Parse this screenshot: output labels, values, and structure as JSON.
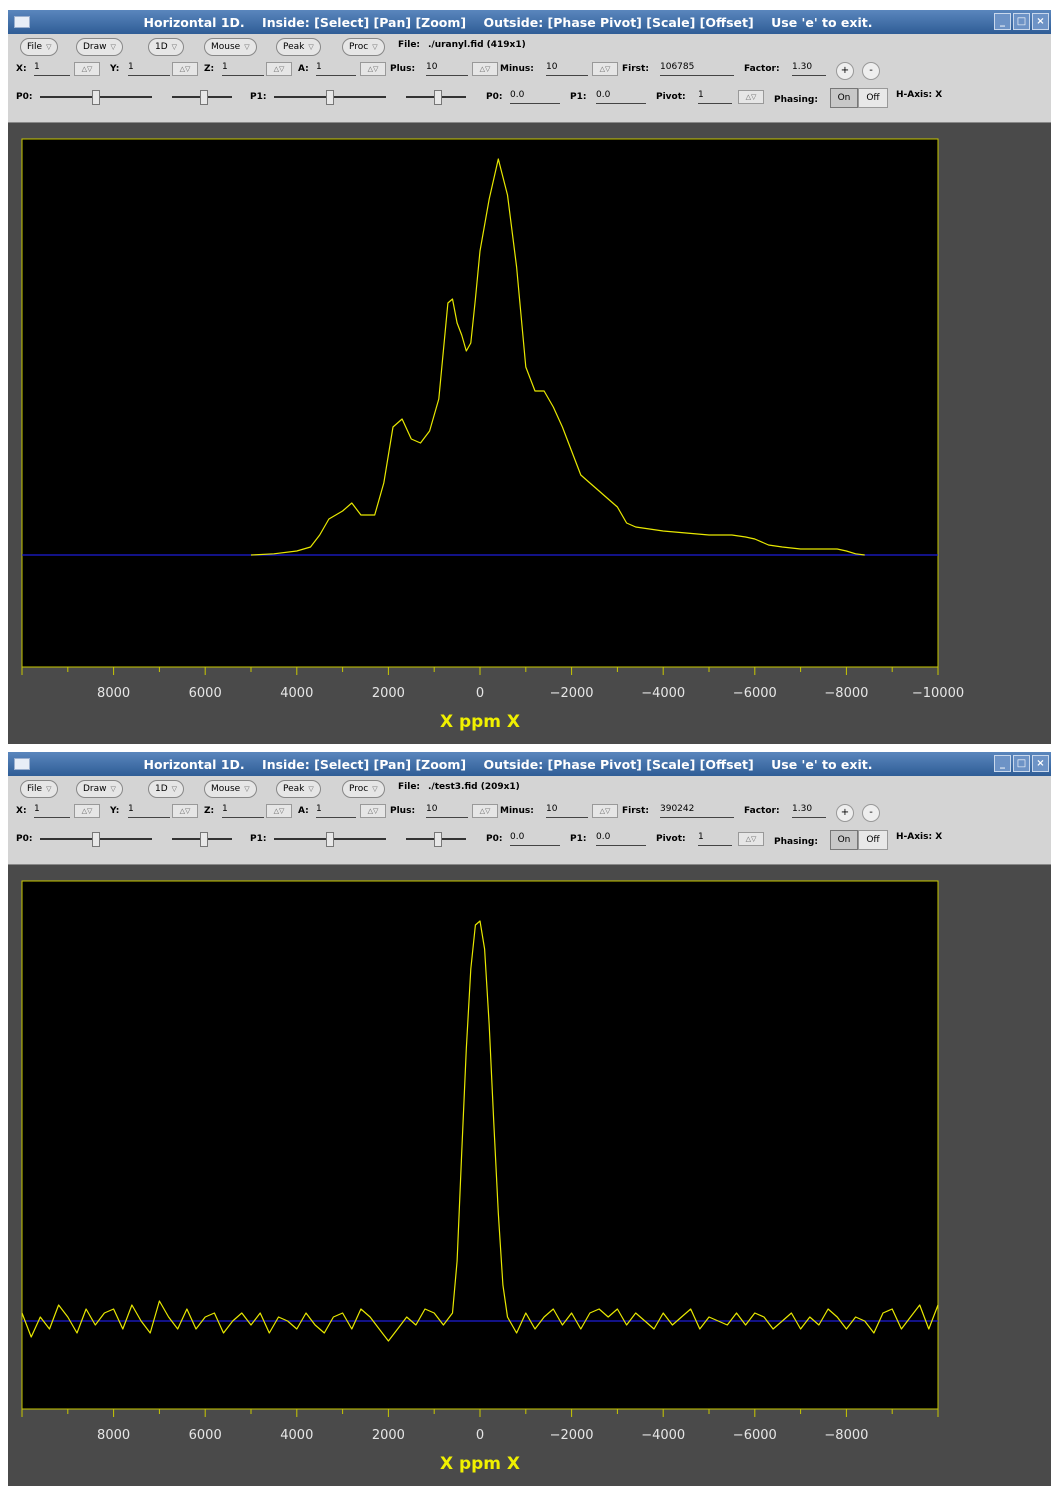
{
  "windows": [
    {
      "title": "Horizontal 1D.    Inside: [Select] [Pan] [Zoom]    Outside: [Phase Pivot] [Scale] [Offset]    Use 'e' to exit.",
      "menus": [
        "File",
        "Draw",
        "1D",
        "Mouse",
        "Peak",
        "Proc"
      ],
      "file_label": "File:",
      "file_value": "./uranyl.fid (419x1)",
      "x": {
        "label": "X:",
        "value": "1"
      },
      "y": {
        "label": "Y:",
        "value": "1"
      },
      "z": {
        "label": "Z:",
        "value": "1"
      },
      "a": {
        "label": "A:",
        "value": "1"
      },
      "plus": {
        "label": "Plus:",
        "value": "10"
      },
      "minus": {
        "label": "Minus:",
        "value": "10"
      },
      "first": {
        "label": "First:",
        "value": "106785"
      },
      "factor": {
        "label": "Factor:",
        "value": "1.30"
      },
      "zoom_in": "+",
      "zoom_out": "-",
      "p0_slider_label": "P0:",
      "p1_slider_label": "P1:",
      "p0": {
        "label": "P0:",
        "value": "0.0"
      },
      "p1": {
        "label": "P1:",
        "value": "0.0"
      },
      "pivot": {
        "label": "Pivot:",
        "value": "1"
      },
      "phasing_label": "Phasing:",
      "on_label": "On",
      "off_label": "Off",
      "haxis": "H-Axis: X",
      "axis_label": "X  ppm  X"
    },
    {
      "title": "Horizontal 1D.    Inside: [Select] [Pan] [Zoom]    Outside: [Phase Pivot] [Scale] [Offset]    Use 'e' to exit.",
      "menus": [
        "File",
        "Draw",
        "1D",
        "Mouse",
        "Peak",
        "Proc"
      ],
      "file_label": "File:",
      "file_value": "./test3.fid (209x1)",
      "x": {
        "label": "X:",
        "value": "1"
      },
      "y": {
        "label": "Y:",
        "value": "1"
      },
      "z": {
        "label": "Z:",
        "value": "1"
      },
      "a": {
        "label": "A:",
        "value": "1"
      },
      "plus": {
        "label": "Plus:",
        "value": "10"
      },
      "minus": {
        "label": "Minus:",
        "value": "10"
      },
      "first": {
        "label": "First:",
        "value": "390242"
      },
      "factor": {
        "label": "Factor:",
        "value": "1.30"
      },
      "zoom_in": "+",
      "zoom_out": "-",
      "p0_slider_label": "P0:",
      "p1_slider_label": "P1:",
      "p0": {
        "label": "P0:",
        "value": "0.0"
      },
      "p1": {
        "label": "P1:",
        "value": "0.0"
      },
      "pivot": {
        "label": "Pivot:",
        "value": "1"
      },
      "phasing_label": "Phasing:",
      "on_label": "On",
      "off_label": "Off",
      "haxis": "H-Axis: X",
      "axis_label": "X  ppm  X"
    }
  ],
  "colors": {
    "trace": "#e8e800",
    "baseline": "#1c1cd8",
    "frame": "#c8c800",
    "tick_label": "#e6e6e6",
    "axis_label": "#f0f000",
    "plot_bg": "#000000",
    "panel_bg": "#4a4a4a"
  },
  "chart_data": [
    {
      "type": "line",
      "xlabel": "X  ppm  X",
      "ylabel": "",
      "xlim": [
        10000,
        -10000
      ],
      "ylim": [
        -0.28,
        1.04
      ],
      "x_reversed": true,
      "grid": false,
      "baseline_y": 0,
      "x_ticks": [
        8000,
        6000,
        4000,
        2000,
        0,
        -2000,
        -4000,
        -6000,
        -8000,
        -10000
      ],
      "x_tick_labels": [
        "8000",
        "6000",
        "4000",
        "2000",
        "0",
        "−2000",
        "−4000",
        "−6000",
        "−8000",
        "−10000"
      ],
      "series": [
        {
          "x": [
            5000,
            4500,
            4000,
            3700,
            3500,
            3300,
            3000,
            2800,
            2600,
            2300,
            2100,
            1900,
            1700,
            1500,
            1300,
            1100,
            900,
            700,
            600,
            500,
            400,
            300,
            200,
            100,
            0,
            -200,
            -400,
            -600,
            -800,
            -1000,
            -1200,
            -1400,
            -1600,
            -1800,
            -2000,
            -2200,
            -2400,
            -2600,
            -2800,
            -3000,
            -3200,
            -3400,
            -3700,
            -4000,
            -4500,
            -5000,
            -5500,
            -5800,
            -6000,
            -6300,
            -6600,
            -7000,
            -7500,
            -7800,
            -8000,
            -8200,
            -8400
          ],
          "y": [
            0,
            0.003,
            0.01,
            0.02,
            0.05,
            0.09,
            0.11,
            0.13,
            0.1,
            0.1,
            0.18,
            0.32,
            0.34,
            0.29,
            0.28,
            0.31,
            0.39,
            0.63,
            0.64,
            0.58,
            0.55,
            0.51,
            0.53,
            0.64,
            0.76,
            0.89,
            0.99,
            0.9,
            0.72,
            0.47,
            0.41,
            0.41,
            0.37,
            0.32,
            0.26,
            0.2,
            0.18,
            0.16,
            0.14,
            0.12,
            0.08,
            0.07,
            0.065,
            0.06,
            0.055,
            0.05,
            0.05,
            0.045,
            0.04,
            0.025,
            0.02,
            0.015,
            0.015,
            0.015,
            0.01,
            0.003,
            0
          ]
        }
      ]
    },
    {
      "type": "line",
      "xlabel": "X  ppm  X",
      "ylabel": "",
      "xlim": [
        10000,
        -10000
      ],
      "ylim": [
        -0.22,
        1.1
      ],
      "x_reversed": true,
      "grid": false,
      "baseline_y": 0,
      "x_ticks": [
        8000,
        6000,
        4000,
        2000,
        0,
        -2000,
        -4000,
        -6000,
        -8000
      ],
      "x_tick_labels": [
        "8000",
        "6000",
        "4000",
        "2000",
        "0",
        "−2000",
        "−4000",
        "−6000",
        "−8000"
      ],
      "series": [
        {
          "x": [
            10000,
            9800,
            9600,
            9400,
            9200,
            9000,
            8800,
            8600,
            8400,
            8200,
            8000,
            7800,
            7600,
            7400,
            7200,
            7000,
            6800,
            6600,
            6400,
            6200,
            6000,
            5800,
            5600,
            5400,
            5200,
            5000,
            4800,
            4600,
            4400,
            4200,
            4000,
            3800,
            3600,
            3400,
            3200,
            3000,
            2800,
            2600,
            2400,
            2200,
            2000,
            1800,
            1600,
            1400,
            1200,
            1000,
            800,
            600,
            500,
            400,
            300,
            200,
            100,
            0,
            -100,
            -200,
            -300,
            -400,
            -500,
            -600,
            -800,
            -1000,
            -1200,
            -1400,
            -1600,
            -1800,
            -2000,
            -2200,
            -2400,
            -2600,
            -2800,
            -3000,
            -3200,
            -3400,
            -3600,
            -3800,
            -4000,
            -4200,
            -4400,
            -4600,
            -4800,
            -5000,
            -5200,
            -5400,
            -5600,
            -5800,
            -6000,
            -6200,
            -6400,
            -6600,
            -6800,
            -7000,
            -7200,
            -7400,
            -7600,
            -7800,
            -8000,
            -8200,
            -8400,
            -8600,
            -8800,
            -9000,
            -9200,
            -9400,
            -9600,
            -9800,
            -10000
          ],
          "y": [
            0.02,
            -0.04,
            0.01,
            -0.02,
            0.04,
            0.01,
            -0.03,
            0.03,
            -0.01,
            0.02,
            0.03,
            -0.02,
            0.04,
            0.0,
            -0.03,
            0.05,
            0.01,
            -0.02,
            0.03,
            -0.02,
            0.01,
            0.02,
            -0.03,
            0.0,
            0.02,
            -0.01,
            0.02,
            -0.03,
            0.01,
            0.0,
            -0.02,
            0.02,
            -0.01,
            -0.03,
            0.01,
            0.02,
            -0.02,
            0.03,
            0.01,
            -0.02,
            -0.05,
            -0.02,
            0.01,
            -0.01,
            0.03,
            0.02,
            -0.01,
            0.02,
            0.15,
            0.42,
            0.68,
            0.88,
            0.99,
            1.0,
            0.93,
            0.74,
            0.5,
            0.27,
            0.09,
            0.01,
            -0.03,
            0.02,
            -0.02,
            0.01,
            0.03,
            -0.01,
            0.02,
            -0.02,
            0.02,
            0.03,
            0.01,
            0.03,
            -0.01,
            0.02,
            0.0,
            -0.02,
            0.02,
            -0.01,
            0.01,
            0.03,
            -0.02,
            0.01,
            0.0,
            -0.01,
            0.02,
            -0.01,
            0.02,
            0.01,
            -0.02,
            0.0,
            0.02,
            -0.02,
            0.01,
            -0.01,
            0.03,
            0.01,
            -0.02,
            0.01,
            0.0,
            -0.03,
            0.02,
            0.03,
            -0.02,
            0.01,
            0.04,
            -0.02,
            0.04
          ]
        }
      ]
    }
  ]
}
